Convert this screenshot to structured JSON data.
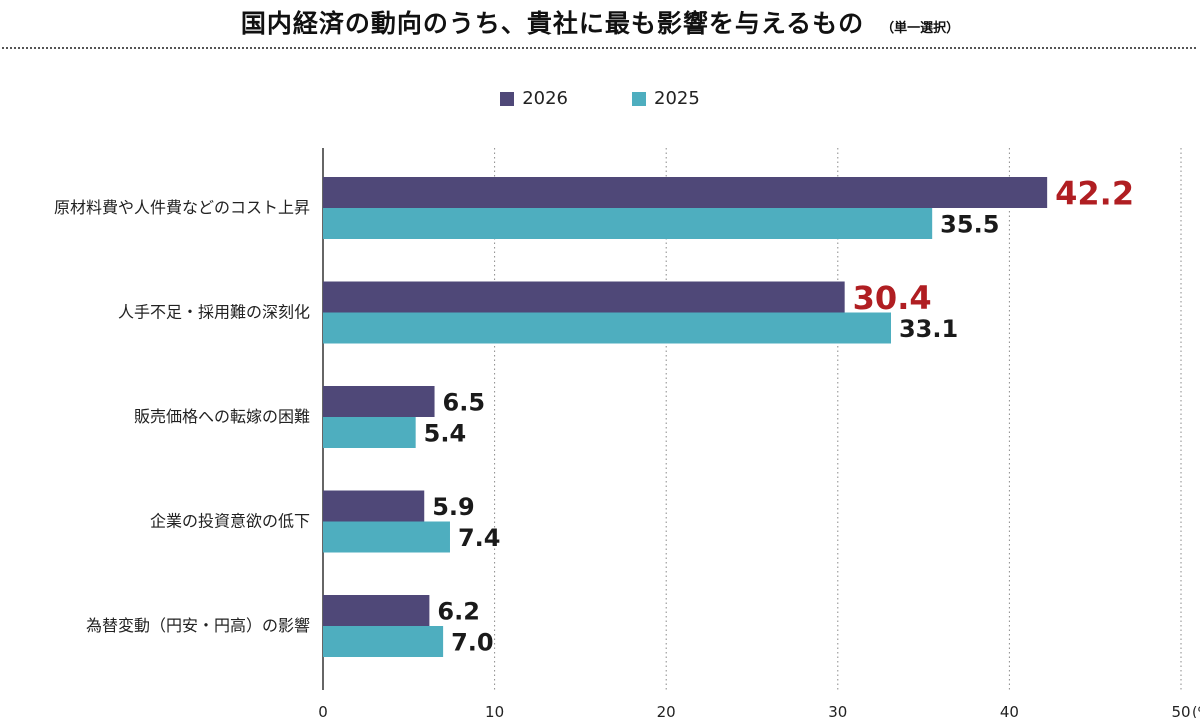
{
  "header": {
    "title": "国内経済の動向のうち、貴社に最も影響を与えるもの",
    "subtitle": "（単一選択）"
  },
  "chart_data": {
    "type": "bar",
    "orientation": "horizontal",
    "categories": [
      "原材料費や人件費などのコスト上昇",
      "人手不足・採用難の深刻化",
      "販売価格への転嫁の困難",
      "企業の投資意欲の低下",
      "為替変動（円安・円高）の影響"
    ],
    "series": [
      {
        "name": "2026",
        "color": "#4f4878",
        "label_color": "#b01e22",
        "values": [
          42.2,
          30.4,
          6.5,
          5.9,
          6.2
        ]
      },
      {
        "name": "2025",
        "color": "#4eaebf",
        "label_color": "#1a1a1a",
        "values": [
          35.5,
          33.1,
          5.4,
          7.4,
          7.0
        ]
      }
    ],
    "data_labels": [
      [
        "42.2",
        "30.4",
        "6.5",
        "5.9",
        "6.2"
      ],
      [
        "35.5",
        "33.1",
        "5.4",
        "7.4",
        "7.0"
      ]
    ],
    "highlight_threshold": 10,
    "highlight_color": "#b01e22",
    "xlim": [
      0,
      50
    ],
    "xticks": [
      "0",
      "10",
      "20",
      "30",
      "40",
      "50"
    ],
    "xunit": "(%)",
    "grid": true,
    "legend": "top-center"
  }
}
